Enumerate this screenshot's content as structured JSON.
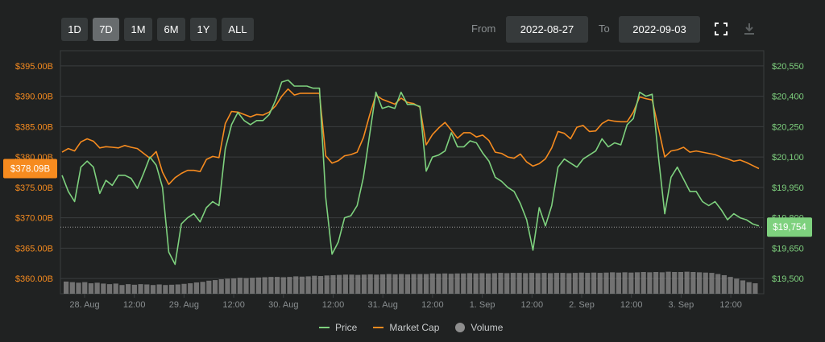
{
  "toolbar": {
    "ranges": [
      "1D",
      "7D",
      "1M",
      "6M",
      "1Y",
      "ALL"
    ],
    "active_range": "7D",
    "from_label": "From",
    "to_label": "To",
    "from_date": "2022-08-27",
    "to_date": "2022-09-03"
  },
  "colors": {
    "price": "#7ed17e",
    "market_cap": "#f68b1f",
    "volume": "#8e8e8e",
    "grid": "#3a3e3f",
    "background": "#202222"
  },
  "icons": [
    "fullscreen-icon",
    "download-icon"
  ],
  "chart_data": {
    "type": "line",
    "x_ticks": [
      "28. Aug",
      "12:00",
      "29. Aug",
      "12:00",
      "30. Aug",
      "12:00",
      "31. Aug",
      "12:00",
      "1. Sep",
      "12:00",
      "2. Sep",
      "12:00",
      "3. Sep",
      "12:00"
    ],
    "y_left": {
      "ticks": [
        "$395.00B",
        "$390.00B",
        "$385.00B",
        "$380.00B",
        "$375.00B",
        "$370.00B",
        "$365.00B",
        "$360.00B"
      ],
      "range": [
        357.5,
        397.5
      ],
      "current_label": "$378.09B",
      "current_value": 378.09
    },
    "y_right": {
      "ticks": [
        "$20,550",
        "$20,400",
        "$20,250",
        "$20,100",
        "$19,950",
        "$19,800",
        "$19,650",
        "$19,500"
      ],
      "range": [
        19425,
        20625
      ],
      "current_label": "$19,754",
      "current_value": 19754
    },
    "grid": true,
    "legend_position": "bottom-center",
    "series": [
      {
        "name": "Price",
        "axis": "right",
        "values": [
          20010,
          19930,
          19880,
          20050,
          20080,
          20050,
          19920,
          19985,
          19960,
          20010,
          20010,
          19995,
          19945,
          20020,
          20100,
          20060,
          19950,
          19630,
          19570,
          19770,
          19800,
          19820,
          19780,
          19850,
          19880,
          19860,
          20140,
          20260,
          20320,
          20280,
          20260,
          20280,
          20280,
          20310,
          20380,
          20470,
          20480,
          20450,
          20450,
          20450,
          20440,
          20440,
          19900,
          19620,
          19680,
          19800,
          19810,
          19860,
          20000,
          20210,
          20420,
          20340,
          20350,
          20340,
          20420,
          20360,
          20360,
          20350,
          20030,
          20100,
          20110,
          20130,
          20220,
          20150,
          20150,
          20180,
          20170,
          20120,
          20080,
          20000,
          19980,
          19950,
          19930,
          19870,
          19790,
          19640,
          19850,
          19760,
          19860,
          20050,
          20090,
          20070,
          20050,
          20090,
          20110,
          20130,
          20190,
          20150,
          20170,
          20160,
          20260,
          20290,
          20420,
          20400,
          20410,
          20100,
          19820,
          20000,
          20050,
          19990,
          19930,
          19930,
          19880,
          19860,
          19880,
          19840,
          19790,
          19820,
          19800,
          19790,
          19770,
          19760
        ]
      },
      {
        "name": "Market Cap",
        "axis": "left",
        "values": [
          380.8,
          381.4,
          381.0,
          382.5,
          383.0,
          382.6,
          381.5,
          381.7,
          381.6,
          381.5,
          381.9,
          381.6,
          381.4,
          380.6,
          379.8,
          380.9,
          377.5,
          375.5,
          376.6,
          377.3,
          377.8,
          377.8,
          377.6,
          379.6,
          380.1,
          379.9,
          385.5,
          387.5,
          387.4,
          387.0,
          386.6,
          387.0,
          386.9,
          387.4,
          388.4,
          390.0,
          391.2,
          390.2,
          390.5,
          390.5,
          390.5,
          390.5,
          380.2,
          379.0,
          379.4,
          380.2,
          380.4,
          380.8,
          383.2,
          386.9,
          390.2,
          389.5,
          389.1,
          388.7,
          389.7,
          389.0,
          388.8,
          388.2,
          382.0,
          383.7,
          384.8,
          385.7,
          384.4,
          383.1,
          384.0,
          384.0,
          383.3,
          383.6,
          382.7,
          380.8,
          380.6,
          380.0,
          379.8,
          380.5,
          379.2,
          378.5,
          378.9,
          379.7,
          381.5,
          384.2,
          383.9,
          383.0,
          384.9,
          385.2,
          384.2,
          384.3,
          385.5,
          386.1,
          385.9,
          385.8,
          385.8,
          387.4,
          389.9,
          389.6,
          389.4,
          384.7,
          380.0,
          381.0,
          381.2,
          381.6,
          380.8,
          381.0,
          380.8,
          380.6,
          380.4,
          380.0,
          379.7,
          379.3,
          379.5,
          379.1,
          378.6,
          378.1
        ]
      },
      {
        "name": "Volume",
        "axis": "none",
        "values": [
          0.42,
          0.4,
          0.38,
          0.4,
          0.36,
          0.38,
          0.35,
          0.33,
          0.35,
          0.3,
          0.33,
          0.31,
          0.33,
          0.32,
          0.3,
          0.32,
          0.3,
          0.31,
          0.32,
          0.34,
          0.36,
          0.39,
          0.41,
          0.45,
          0.47,
          0.5,
          0.52,
          0.53,
          0.55,
          0.54,
          0.55,
          0.56,
          0.57,
          0.58,
          0.58,
          0.57,
          0.58,
          0.6,
          0.59,
          0.6,
          0.62,
          0.61,
          0.63,
          0.64,
          0.65,
          0.66,
          0.66,
          0.65,
          0.66,
          0.67,
          0.66,
          0.67,
          0.68,
          0.67,
          0.68,
          0.67,
          0.68,
          0.68,
          0.68,
          0.7,
          0.69,
          0.7,
          0.69,
          0.7,
          0.7,
          0.71,
          0.7,
          0.71,
          0.7,
          0.71,
          0.72,
          0.71,
          0.72,
          0.72,
          0.71,
          0.72,
          0.71,
          0.72,
          0.71,
          0.72,
          0.72,
          0.71,
          0.72,
          0.73,
          0.72,
          0.73,
          0.72,
          0.73,
          0.74,
          0.73,
          0.74,
          0.73,
          0.74,
          0.75,
          0.74,
          0.75,
          0.74,
          0.76,
          0.75,
          0.75,
          0.76,
          0.75,
          0.74,
          0.73,
          0.72,
          0.68,
          0.64,
          0.58,
          0.52,
          0.46,
          0.4,
          0.36
        ]
      }
    ]
  }
}
